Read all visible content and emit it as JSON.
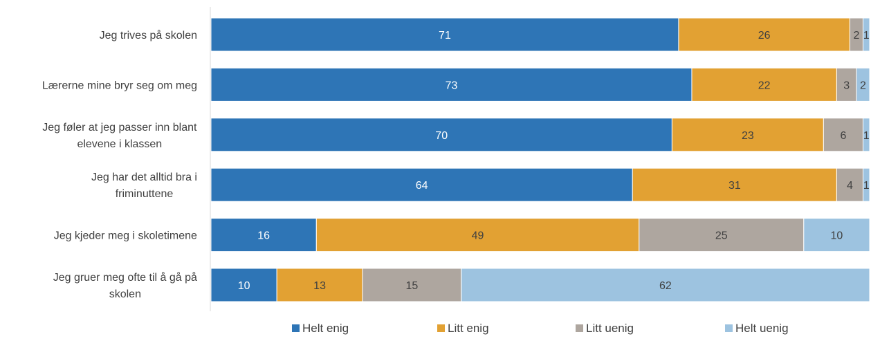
{
  "chart_data": {
    "type": "bar",
    "orientation": "horizontal",
    "stacked": true,
    "title": "",
    "xlabel": "",
    "ylabel": "",
    "xlim": [
      0,
      100
    ],
    "grid": false,
    "legend": "bottom",
    "categories": [
      [
        "Jeg trives på skolen"
      ],
      [
        "Lærerne mine bryr seg om meg"
      ],
      [
        "Jeg føler at jeg passer inn blant",
        "elevene i klassen"
      ],
      [
        "Jeg har det alltid bra i",
        "friminuttene"
      ],
      [
        "Jeg kjeder meg i skoletimene"
      ],
      [
        "Jeg gruer meg ofte til å gå på",
        "skolen"
      ]
    ],
    "series": [
      {
        "name": "Helt enig",
        "color": "#2e75b6",
        "values": [
          71,
          73,
          70,
          64,
          16,
          10
        ]
      },
      {
        "name": "Litt enig",
        "color": "#e2a133",
        "values": [
          26,
          22,
          23,
          31,
          49,
          13
        ]
      },
      {
        "name": "Litt uenig",
        "color": "#aea69f",
        "values": [
          2,
          3,
          6,
          4,
          25,
          15
        ]
      },
      {
        "name": "Helt uenig",
        "color": "#9dc3e0",
        "values": [
          1,
          2,
          1,
          1,
          10,
          62
        ]
      }
    ]
  }
}
